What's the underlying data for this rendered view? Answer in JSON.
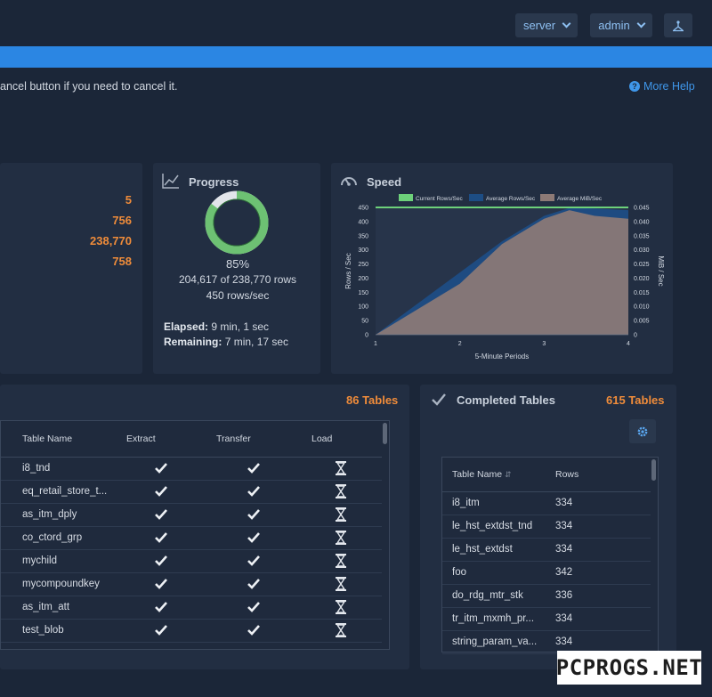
{
  "header": {
    "server_label": "server",
    "admin_label": "admin",
    "network_icon": "network-icon"
  },
  "info": {
    "text": "ancel button if you need to cancel it.",
    "more_help": "More Help"
  },
  "stats": {
    "values": [
      "5",
      "756",
      "238,770",
      "758"
    ]
  },
  "progress": {
    "title": "Progress",
    "percent": 85,
    "percent_label": "85%",
    "rows_label": "204,617 of 238,770 rows",
    "rate_label": "450 rows/sec",
    "elapsed_key": "Elapsed:",
    "elapsed_val": "9 min, 1 sec",
    "remaining_key": "Remaining:",
    "remaining_val": "7 min, 17 sec"
  },
  "speed": {
    "title": "Speed"
  },
  "chart_data": {
    "type": "area",
    "title": "",
    "xlabel": "5-Minute Periods",
    "ylabel": "Rows / Sec",
    "y2label": "MiB / Sec",
    "xlim": [
      1,
      4
    ],
    "ylim": [
      0,
      450
    ],
    "y2lim": [
      0,
      0.045
    ],
    "x_ticks": [
      "1",
      "2",
      "3",
      "4"
    ],
    "y_ticks": [
      "0",
      "50",
      "100",
      "150",
      "200",
      "250",
      "300",
      "350",
      "400",
      "450"
    ],
    "y2_ticks": [
      "0",
      "0.005",
      "0.010",
      "0.015",
      "0.020",
      "0.025",
      "0.030",
      "0.035",
      "0.040",
      "0.045"
    ],
    "legend_position": "top",
    "series": [
      {
        "name": "Current Rows/Sec",
        "color": "#6dd17a",
        "axis": "left",
        "x": [
          1,
          4
        ],
        "values": [
          450,
          450
        ]
      },
      {
        "name": "Average Rows/Sec",
        "color": "#1d4d84",
        "axis": "left",
        "x": [
          1,
          1.5,
          2,
          2.5,
          3,
          3.3,
          3.6,
          4
        ],
        "values": [
          0,
          110,
          220,
          330,
          420,
          448,
          446,
          440
        ]
      },
      {
        "name": "Average MiB/Sec",
        "color": "#8d7a76",
        "axis": "right",
        "x": [
          1,
          1.5,
          2,
          2.5,
          3,
          3.3,
          3.6,
          4
        ],
        "values": [
          0,
          0.009,
          0.018,
          0.032,
          0.041,
          0.044,
          0.042,
          0.041
        ]
      }
    ]
  },
  "inprogress": {
    "count_label": "86 Tables",
    "columns": [
      "Table Name",
      "Extract",
      "Transfer",
      "Load"
    ],
    "rows": [
      {
        "name": "i8_tnd"
      },
      {
        "name": "eq_retail_store_t..."
      },
      {
        "name": "as_itm_dply"
      },
      {
        "name": "co_ctord_grp"
      },
      {
        "name": "mychild"
      },
      {
        "name": "mycompoundkey"
      },
      {
        "name": "as_itm_att"
      },
      {
        "name": "test_blob"
      }
    ]
  },
  "completed": {
    "title": "Completed Tables",
    "count_label": "615 Tables",
    "columns": [
      "Table Name",
      "Rows"
    ],
    "rows": [
      {
        "name": "i8_itm",
        "rows": "334"
      },
      {
        "name": "le_hst_extdst_tnd",
        "rows": "334"
      },
      {
        "name": "le_hst_extdst",
        "rows": "334"
      },
      {
        "name": "foo",
        "rows": "342"
      },
      {
        "name": "do_rdg_mtr_stk",
        "rows": "336"
      },
      {
        "name": "tr_itm_mxmh_pr...",
        "rows": "334"
      },
      {
        "name": "string_param_va...",
        "rows": "334"
      }
    ]
  },
  "watermark": {
    "text": "PCPROGS.NET"
  }
}
